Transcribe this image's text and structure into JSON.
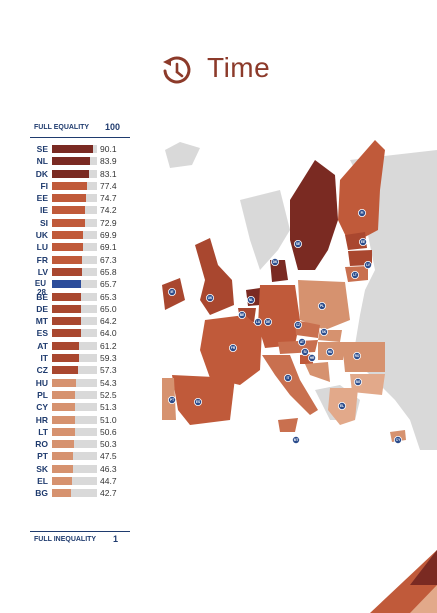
{
  "header": {
    "title": "Time",
    "icon": "clock-arrow-icon"
  },
  "scale": {
    "top_label": "FULL EQUALITY",
    "top_value": "100",
    "bottom_label": "FULL INEQUALITY",
    "bottom_value": "1"
  },
  "colors": {
    "darkest": "#7a2a22",
    "dark": "#8c3a2a",
    "mid_dark": "#a9472f",
    "mid": "#c05a3a",
    "mid_light": "#c9704f",
    "light": "#d6926f",
    "lightest": "#e2a98a",
    "eu": "#2b4c9a",
    "track": "#d9d9d9",
    "non_eu_land": "#d9d9d9"
  },
  "chart_data": {
    "type": "bar",
    "orientation": "horizontal",
    "xlim": [
      1,
      100
    ],
    "categories": [
      "SE",
      "NL",
      "DK",
      "FI",
      "EE",
      "IE",
      "SI",
      "UK",
      "LU",
      "FR",
      "LV",
      "EU 28",
      "BE",
      "DE",
      "MT",
      "ES",
      "AT",
      "IT",
      "CZ",
      "HU",
      "PL",
      "CY",
      "HR",
      "LT",
      "RO",
      "PT",
      "SK",
      "EL",
      "BG"
    ],
    "values": [
      90.1,
      83.9,
      83.1,
      77.4,
      74.7,
      74.2,
      72.9,
      69.9,
      69.1,
      67.3,
      65.8,
      65.7,
      65.3,
      65.0,
      64.2,
      64.0,
      61.2,
      59.3,
      57.3,
      54.3,
      52.5,
      51.3,
      51.0,
      50.6,
      50.3,
      47.5,
      46.3,
      44.7,
      42.7
    ],
    "value_labels": [
      "90.1",
      "83.9",
      "83.1",
      "77.4",
      "74.7",
      "74.2",
      "72.9",
      "69.9",
      "69.1",
      "67.3",
      "65.8",
      "65.7",
      "65.3",
      "65.0",
      "64.2",
      "64.0",
      "61.2",
      "59.3",
      "57.3",
      "54.3",
      "52.5",
      "51.3",
      "51.0",
      "50.6",
      "50.3",
      "47.5",
      "46.3",
      "44.7",
      "42.7"
    ]
  },
  "map": {
    "country_labels": [
      "SE",
      "FI",
      "EE",
      "LV",
      "LT",
      "DK",
      "NL",
      "UK",
      "IE",
      "BE",
      "LU",
      "DE",
      "PL",
      "CZ",
      "SK",
      "AT",
      "HU",
      "SI",
      "HR",
      "RO",
      "BG",
      "FR",
      "IT",
      "ES",
      "PT",
      "EL",
      "MT",
      "CY"
    ]
  }
}
